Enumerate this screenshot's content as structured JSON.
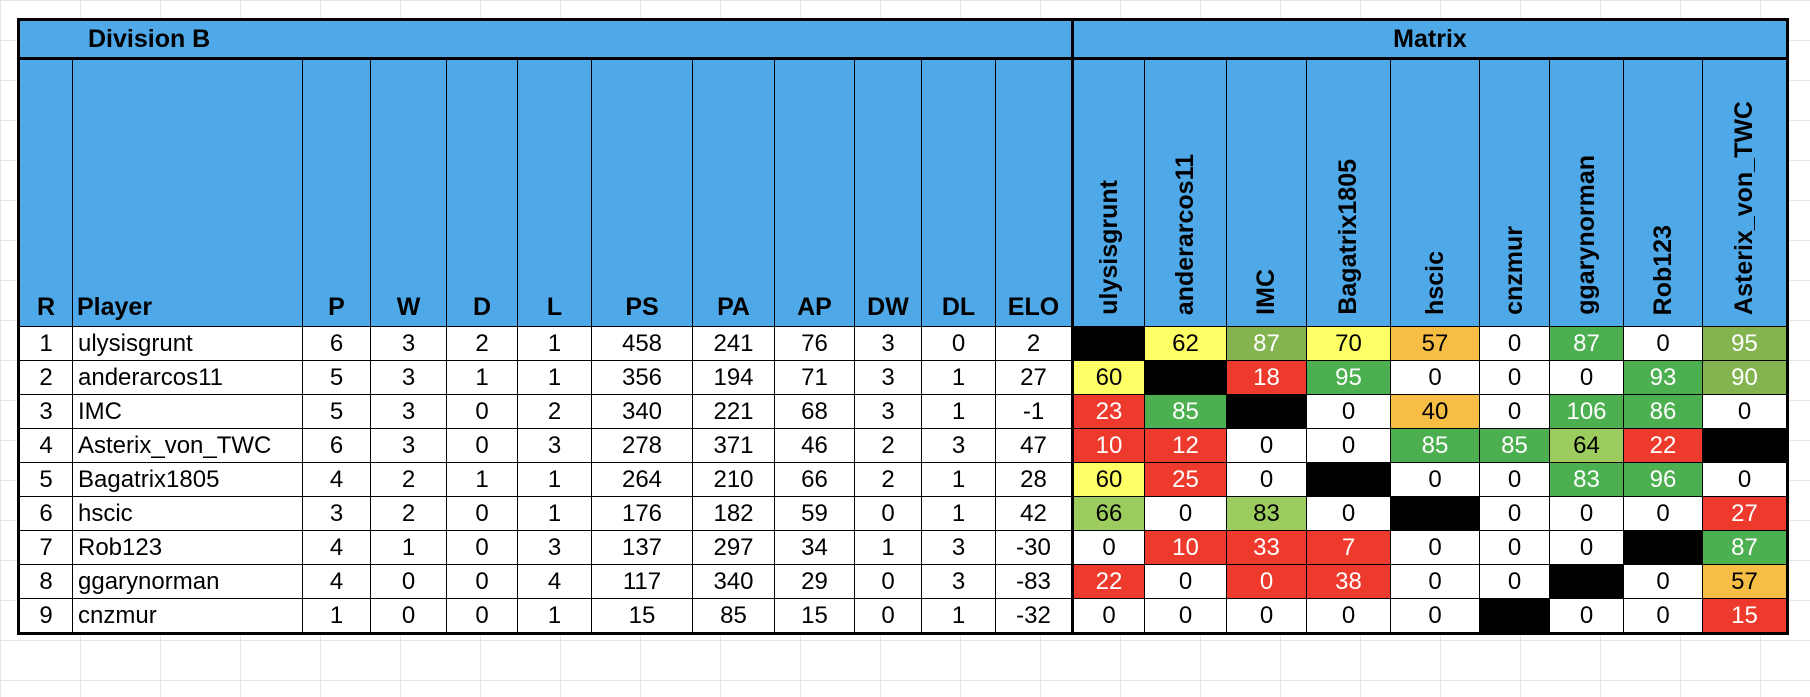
{
  "title": "Division B",
  "matrix_title": "Matrix",
  "columns": [
    "R",
    "Player",
    "P",
    "W",
    "D",
    "L",
    "PS",
    "PA",
    "AP",
    "DW",
    "DL",
    "ELO"
  ],
  "matrix_columns": [
    "ulysisgrunt",
    "anderarcos11",
    "IMC",
    "Bagatrix1805",
    "hscic",
    "cnzmur",
    "ggarynorman",
    "Rob123",
    "Asterix_von_TWC"
  ],
  "rows": [
    {
      "stats": [
        "1",
        "ulysisgrunt",
        "6",
        "3",
        "2",
        "1",
        "458",
        "241",
        "76",
        "3",
        "0",
        "2"
      ],
      "matrix": [
        "",
        "62",
        "87",
        "70",
        "57",
        "0",
        "87",
        "0",
        "95"
      ],
      "colors": [
        "black",
        "yellow",
        "olive",
        "yellow",
        "orange",
        "",
        "green",
        "",
        "olive"
      ]
    },
    {
      "stats": [
        "2",
        "anderarcos11",
        "5",
        "3",
        "1",
        "1",
        "356",
        "194",
        "71",
        "3",
        "1",
        "27"
      ],
      "matrix": [
        "60",
        "",
        "18",
        "95",
        "0",
        "0",
        "0",
        "93",
        "90"
      ],
      "colors": [
        "yellow",
        "black",
        "red",
        "green",
        "",
        "",
        "",
        "green",
        "olive"
      ]
    },
    {
      "stats": [
        "3",
        "IMC",
        "5",
        "3",
        "0",
        "2",
        "340",
        "221",
        "68",
        "3",
        "1",
        "-1"
      ],
      "matrix": [
        "23",
        "85",
        "",
        "0",
        "40",
        "0",
        "106",
        "86",
        "0"
      ],
      "colors": [
        "red",
        "green",
        "black",
        "",
        "orange",
        "",
        "green",
        "green",
        ""
      ]
    },
    {
      "stats": [
        "4",
        "Asterix_von_TWC",
        "6",
        "3",
        "0",
        "3",
        "278",
        "371",
        "46",
        "2",
        "3",
        "47"
      ],
      "matrix": [
        "10",
        "12",
        "0",
        "0",
        "85",
        "85",
        "64",
        "22",
        ""
      ],
      "colors": [
        "red",
        "red",
        "",
        "",
        "green",
        "green",
        "lime",
        "red",
        "black"
      ]
    },
    {
      "stats": [
        "5",
        "Bagatrix1805",
        "4",
        "2",
        "1",
        "1",
        "264",
        "210",
        "66",
        "2",
        "1",
        "28"
      ],
      "matrix": [
        "60",
        "25",
        "0",
        "",
        "0",
        "0",
        "83",
        "96",
        "0"
      ],
      "colors": [
        "yellow",
        "red",
        "",
        "black",
        "",
        "",
        "green",
        "green",
        ""
      ]
    },
    {
      "stats": [
        "6",
        "hscic",
        "3",
        "2",
        "0",
        "1",
        "176",
        "182",
        "59",
        "0",
        "1",
        "42"
      ],
      "matrix": [
        "66",
        "0",
        "83",
        "0",
        "",
        "0",
        "0",
        "0",
        "27"
      ],
      "colors": [
        "lime",
        "",
        "lime",
        "",
        "black",
        "",
        "",
        "",
        "red"
      ]
    },
    {
      "stats": [
        "7",
        "Rob123",
        "4",
        "1",
        "0",
        "3",
        "137",
        "297",
        "34",
        "1",
        "3",
        "-30"
      ],
      "matrix": [
        "0",
        "10",
        "33",
        "7",
        "0",
        "0",
        "0",
        "",
        "87"
      ],
      "colors": [
        "",
        "red",
        "red",
        "red",
        "",
        "",
        "",
        "black",
        "green"
      ]
    },
    {
      "stats": [
        "8",
        "ggarynorman",
        "4",
        "0",
        "0",
        "4",
        "117",
        "340",
        "29",
        "0",
        "3",
        "-83"
      ],
      "matrix": [
        "22",
        "0",
        "0",
        "38",
        "0",
        "0",
        "",
        "0",
        "57"
      ],
      "colors": [
        "red",
        "",
        "red",
        "red",
        "",
        "",
        "black",
        "",
        "orange"
      ]
    },
    {
      "stats": [
        "9",
        "cnzmur",
        "1",
        "0",
        "0",
        "1",
        "15",
        "85",
        "15",
        "0",
        "1",
        "-32"
      ],
      "matrix": [
        "0",
        "0",
        "0",
        "0",
        "0",
        "",
        "0",
        "0",
        "15"
      ],
      "colors": [
        "",
        "",
        "",
        "",
        "",
        "black",
        "",
        "",
        "red"
      ]
    }
  ],
  "color_legend": {
    "black": "#000000",
    "yellow": "#FFFF66",
    "olive": "#84B44F",
    "green": "#4CAF50",
    "lime": "#9CCB5E",
    "orange": "#F7BE45",
    "red": "#EE3A2C"
  }
}
